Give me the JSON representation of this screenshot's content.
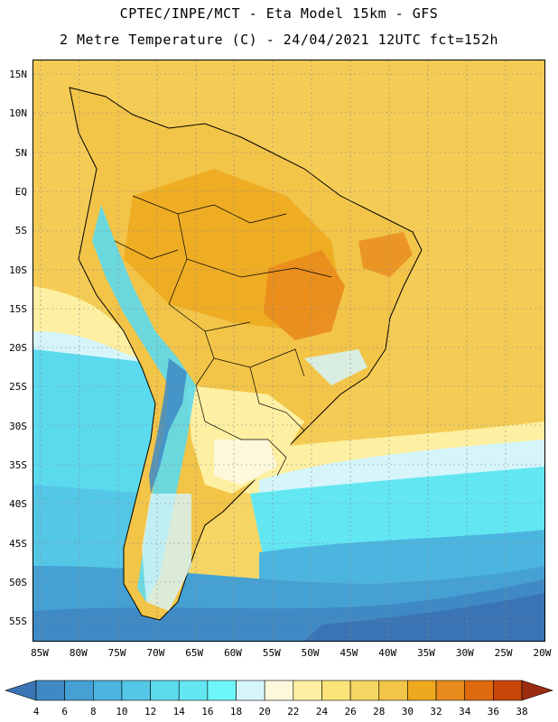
{
  "header": {
    "line1": "CPTEC/INPE/MCT -  Eta Model 15km - GFS",
    "line2": "2 Metre Temperature (C) - 24/04/2021 12UTC fct=152h"
  },
  "map": {
    "lat_labels": [
      "15N",
      "10N",
      "5N",
      "EQ",
      "5S",
      "10S",
      "15S",
      "20S",
      "25S",
      "30S",
      "35S",
      "40S",
      "45S",
      "50S",
      "55S"
    ],
    "lon_labels": [
      "85W",
      "80W",
      "75W",
      "70W",
      "65W",
      "60W",
      "55W",
      "50W",
      "45W",
      "40W",
      "35W",
      "30W",
      "25W",
      "20W"
    ],
    "lat_range": [
      17,
      -58
    ],
    "lon_range": [
      -86,
      -20
    ]
  },
  "colorbar": {
    "labels": [
      "4",
      "6",
      "8",
      "10",
      "12",
      "14",
      "16",
      "18",
      "20",
      "22",
      "24",
      "26",
      "28",
      "30",
      "32",
      "34",
      "36",
      "38"
    ],
    "colors": [
      "#3a74b4",
      "#3f8ac4",
      "#45a1d3",
      "#4cb5df",
      "#55c7e6",
      "#5cdaed",
      "#62e7f2",
      "#6ef7fb",
      "#d5f5fb",
      "#fdf8dc",
      "#fdf0a2",
      "#fbe47a",
      "#f6d564",
      "#f2c448",
      "#eea91e",
      "#e98b1c",
      "#e06a10",
      "#c84508",
      "#9b2c10"
    ]
  }
}
